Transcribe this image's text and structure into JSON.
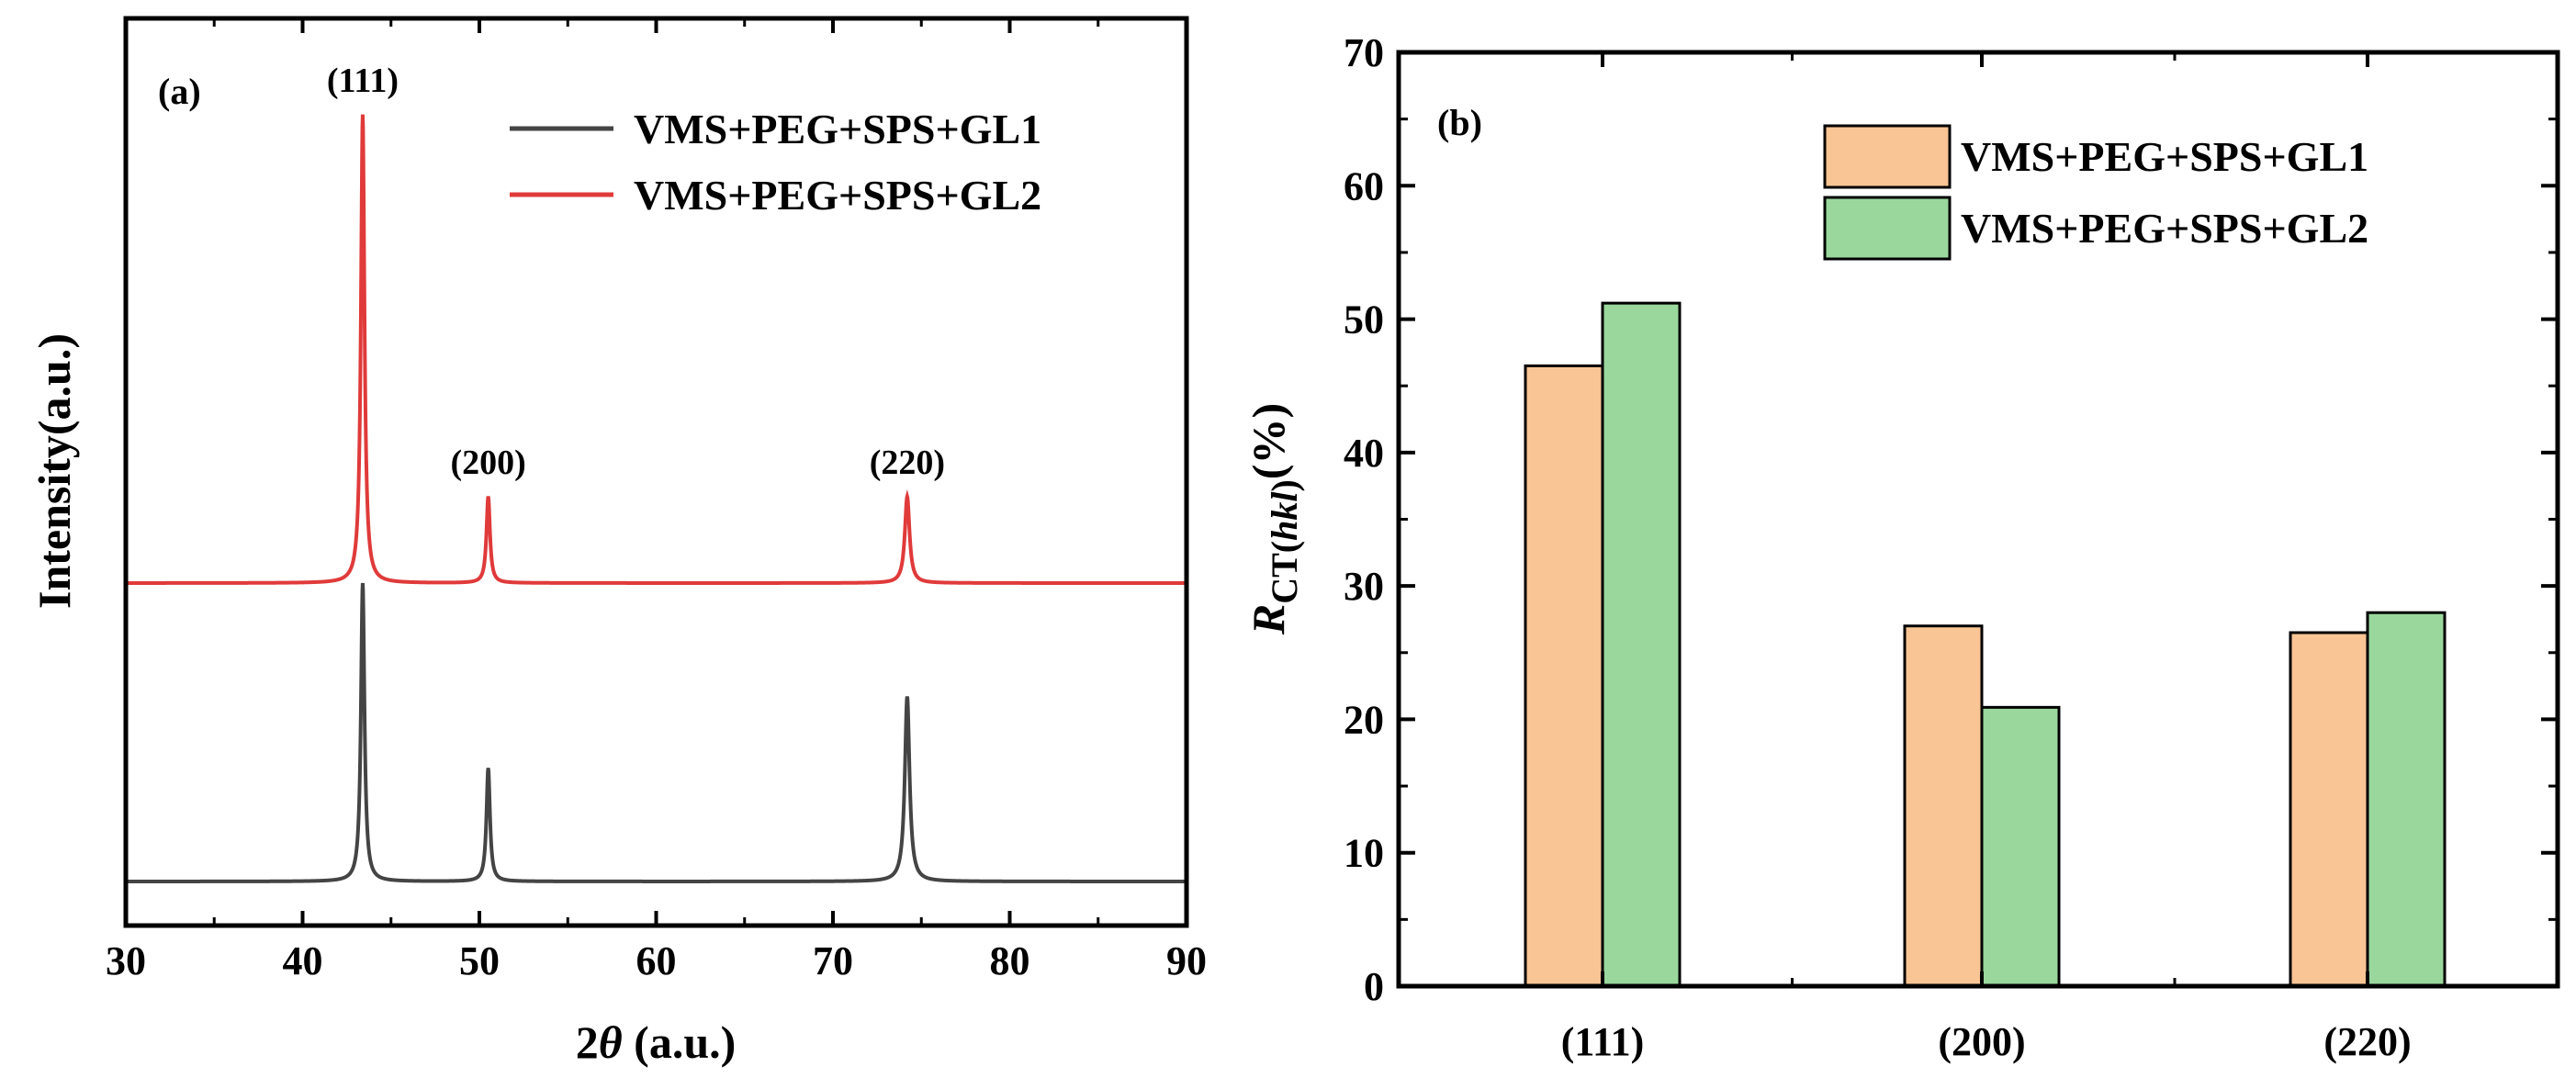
{
  "colors": {
    "series_a1": "#444444",
    "series_a2": "#e03a3a",
    "bar_gl1": "#f9c594",
    "bar_gl2": "#9ad79c",
    "axis": "#000000"
  },
  "chart_data": [
    {
      "type": "line",
      "panel_label": "(a)",
      "xlabel_prefix": "2",
      "xlabel_symbol": "θ",
      "xlabel_suffix": " (a.u.)",
      "ylabel": "Intensity(a.u.)",
      "xlim": [
        30,
        90
      ],
      "x_ticks": [
        30,
        40,
        50,
        60,
        70,
        80,
        90
      ],
      "x_tick_labels": [
        "30",
        "40",
        "50",
        "60",
        "70",
        "80",
        "90"
      ],
      "y_ticks_shown": false,
      "ylim": [
        0,
        3
      ],
      "peak_labels": [
        {
          "text": "(111)",
          "x": 43.4,
          "series": 1
        },
        {
          "text": "(200)",
          "x": 50.5,
          "series": 1
        },
        {
          "text": "(220)",
          "x": 74.2,
          "series": 1
        }
      ],
      "series": [
        {
          "name": "VMS+PEG+SPS+GL1",
          "color": "#444444",
          "baseline": 0.0,
          "peaks": [
            {
              "x": 43.4,
              "height": 1.0,
              "width": 0.12
            },
            {
              "x": 50.5,
              "height": 0.38,
              "width": 0.12
            },
            {
              "x": 74.2,
              "height": 0.62,
              "width": 0.16
            }
          ]
        },
        {
          "name": "VMS+PEG+SPS+GL2",
          "color": "#e03a3a",
          "baseline": 1.0,
          "peaks": [
            {
              "x": 43.4,
              "height": 1.57,
              "width": 0.12
            },
            {
              "x": 50.5,
              "height": 0.29,
              "width": 0.12
            },
            {
              "x": 74.2,
              "height": 0.29,
              "width": 0.16
            }
          ]
        }
      ]
    },
    {
      "type": "bar",
      "panel_label": "(b)",
      "ylabel_main": "R",
      "ylabel_sub": "CT",
      "ylabel_paren_open": "(",
      "ylabel_hkl": "hkl",
      "ylabel_paren_close": ")",
      "ylabel_unit": "(%)",
      "categories": [
        "(111)",
        "(200)",
        "(220)"
      ],
      "ylim": [
        0,
        70
      ],
      "y_ticks": [
        0,
        10,
        20,
        30,
        40,
        50,
        60,
        70
      ],
      "y_tick_labels": [
        "0",
        "10",
        "20",
        "30",
        "40",
        "50",
        "60",
        "70"
      ],
      "series": [
        {
          "name": "VMS+PEG+SPS+GL1",
          "color": "#f9c594",
          "values": [
            46.5,
            27.0,
            26.5
          ]
        },
        {
          "name": "VMS+PEG+SPS+GL2",
          "color": "#9ad79c",
          "values": [
            51.2,
            20.9,
            28.0
          ]
        }
      ]
    }
  ]
}
